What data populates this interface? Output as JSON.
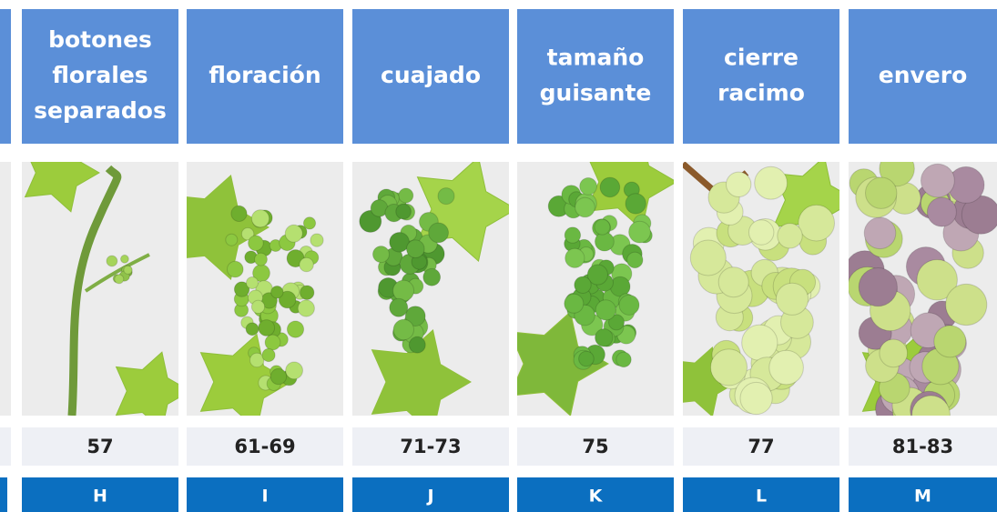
{
  "stages": [
    {
      "title_lines": [
        "botones",
        "florales",
        "separados"
      ],
      "code": "57",
      "letter": "H"
    },
    {
      "title_lines": [
        "floración"
      ],
      "code": "61-69",
      "letter": "I"
    },
    {
      "title_lines": [
        "cuajado"
      ],
      "code": "71-73",
      "letter": "J"
    },
    {
      "title_lines": [
        "tamaño",
        "guisante"
      ],
      "code": "75",
      "letter": "K"
    },
    {
      "title_lines": [
        "cierre",
        "racimo"
      ],
      "code": "77",
      "letter": "L"
    },
    {
      "title_lines": [
        "envero"
      ],
      "code": "81-83",
      "letter": "M"
    }
  ]
}
